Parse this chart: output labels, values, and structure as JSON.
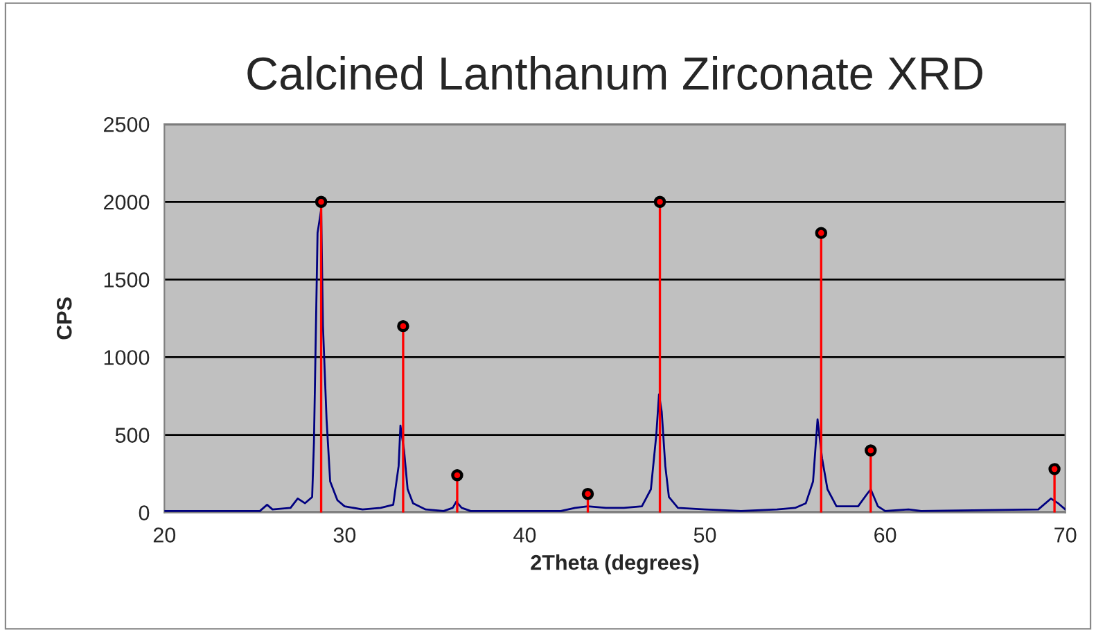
{
  "chart_data": {
    "type": "line",
    "title": "Calcined Lanthanum Zirconate XRD",
    "xlabel": "2Theta (degrees)",
    "ylabel": "CPS",
    "xlim": [
      20,
      70
    ],
    "xticks": [
      20,
      30,
      40,
      50,
      60,
      70
    ],
    "ylim": [
      0,
      2500
    ],
    "yticks": [
      0,
      500,
      1000,
      1500,
      2000,
      2500
    ],
    "grid": "y",
    "legend": false,
    "series": [
      {
        "color": "#000080",
        "marker": "none",
        "x": [
          20,
          25.3,
          25.7,
          26.0,
          27.0,
          27.4,
          27.8,
          28.2,
          28.3,
          28.5,
          28.7,
          28.8,
          29.0,
          29.2,
          29.6,
          30,
          31,
          32,
          32.7,
          33.0,
          33.1,
          33.3,
          33.5,
          33.8,
          34.5,
          35.5,
          36.0,
          36.2,
          36.5,
          37,
          42,
          42.8,
          43.5,
          44.5,
          45.5,
          46.5,
          47.0,
          47.3,
          47.45,
          47.6,
          47.8,
          48,
          48.5,
          50,
          52,
          54,
          55,
          55.6,
          56.0,
          56.25,
          56.5,
          56.8,
          57.3,
          58.5,
          59.0,
          59.2,
          59.6,
          60,
          61.3,
          62,
          68.5,
          69.2,
          69.6,
          70
        ],
        "values": [
          10,
          10,
          50,
          20,
          30,
          90,
          60,
          100,
          450,
          1800,
          1950,
          1200,
          600,
          200,
          80,
          40,
          20,
          30,
          50,
          300,
          560,
          400,
          150,
          60,
          20,
          10,
          30,
          70,
          30,
          10,
          10,
          30,
          40,
          30,
          30,
          40,
          150,
          500,
          760,
          650,
          300,
          100,
          30,
          20,
          10,
          20,
          30,
          60,
          200,
          600,
          350,
          150,
          40,
          40,
          120,
          150,
          40,
          10,
          20,
          10,
          20,
          90,
          60,
          20
        ]
      },
      {
        "type": "lollipop",
        "color": "#ff0000",
        "marker": "circle",
        "x": [
          28.7,
          33.25,
          36.25,
          43.5,
          47.5,
          56.45,
          59.2,
          69.4
        ],
        "values": [
          2000,
          1200,
          240,
          120,
          2000,
          1800,
          400,
          280
        ]
      }
    ]
  }
}
